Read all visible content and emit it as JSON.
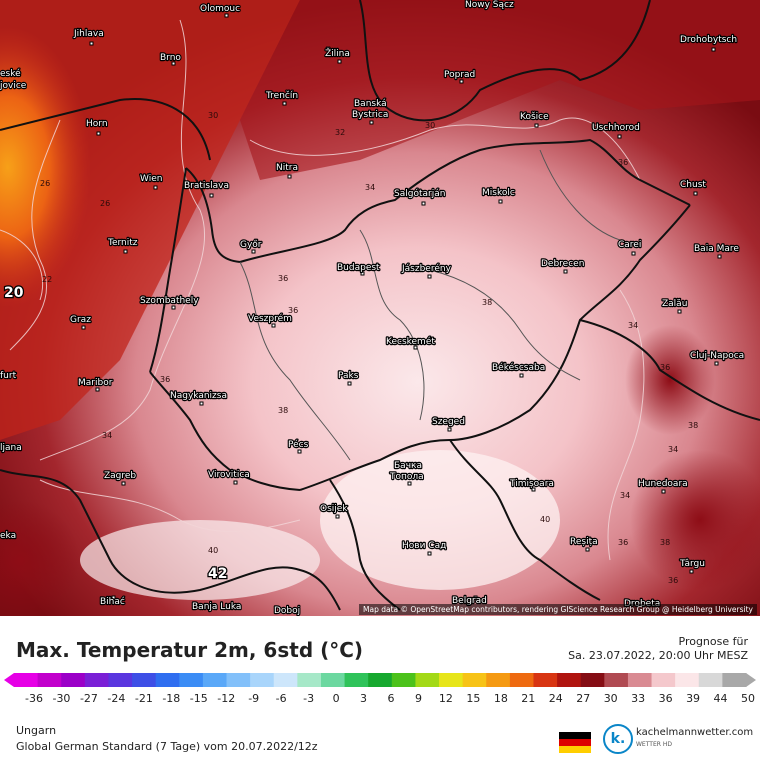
{
  "map": {
    "attribution": "Map data © OpenStreetMap contributors, rendering GIScience Research Group @ Heidelberg University",
    "cities": [
      {
        "id": "olomouc",
        "name": "Olomouc"
      },
      {
        "id": "nowysacz",
        "name": "Nowy Sącz"
      },
      {
        "id": "jihlava",
        "name": "Jihlava"
      },
      {
        "id": "drohobytsch",
        "name": "Drohobytsch"
      },
      {
        "id": "ceske",
        "name": "eské"
      },
      {
        "id": "jovice",
        "name": "jovice"
      },
      {
        "id": "brno",
        "name": "Brno"
      },
      {
        "id": "zilina",
        "name": "Žilina"
      },
      {
        "id": "poprad",
        "name": "Poprad"
      },
      {
        "id": "trencin",
        "name": "Trenčín"
      },
      {
        "id": "banska",
        "name": "Banská"
      },
      {
        "id": "bystrica",
        "name": "Bystrica"
      },
      {
        "id": "horn",
        "name": "Horn"
      },
      {
        "id": "kosice",
        "name": "Košice"
      },
      {
        "id": "uschhorod",
        "name": "Uschhorod"
      },
      {
        "id": "nitra",
        "name": "Nitra"
      },
      {
        "id": "wien",
        "name": "Wien"
      },
      {
        "id": "bratislava",
        "name": "Bratislava"
      },
      {
        "id": "salgotarjan",
        "name": "Salgótarján"
      },
      {
        "id": "miskolc",
        "name": "Miskolc"
      },
      {
        "id": "chust",
        "name": "Chust"
      },
      {
        "id": "ternitz",
        "name": "Ternitz"
      },
      {
        "id": "gyor",
        "name": "Győr"
      },
      {
        "id": "carei",
        "name": "Carei"
      },
      {
        "id": "baiamare",
        "name": "Baia Mare"
      },
      {
        "id": "budapest",
        "name": "Budapest"
      },
      {
        "id": "jaszbereny",
        "name": "Jászberény"
      },
      {
        "id": "debrecen",
        "name": "Debrecen"
      },
      {
        "id": "zalau",
        "name": "Zalău"
      },
      {
        "id": "szombathely",
        "name": "Szombathely"
      },
      {
        "id": "graz",
        "name": "Graz"
      },
      {
        "id": "veszprem",
        "name": "Veszprém"
      },
      {
        "id": "kecskemet",
        "name": "Kecskemét"
      },
      {
        "id": "clujnapoca",
        "name": "Cluj-Napoca"
      },
      {
        "id": "furt",
        "name": "furt"
      },
      {
        "id": "maribor",
        "name": "Maribor"
      },
      {
        "id": "paks",
        "name": "Paks"
      },
      {
        "id": "bekescsaba",
        "name": "Békéscsaba"
      },
      {
        "id": "nagykanizsa",
        "name": "Nagykanizsa"
      },
      {
        "id": "szeged",
        "name": "Szeged"
      },
      {
        "id": "ljubljana",
        "name": "ljana"
      },
      {
        "id": "pecs",
        "name": "Pécs"
      },
      {
        "id": "backa",
        "name": "Бачка"
      },
      {
        "id": "topola",
        "name": "Топола"
      },
      {
        "id": "zagreb",
        "name": "Zagreb"
      },
      {
        "id": "virovitica",
        "name": "Virovitica"
      },
      {
        "id": "timisoara",
        "name": "Timișoara"
      },
      {
        "id": "hunedoara",
        "name": "Hunedoara"
      },
      {
        "id": "osijek",
        "name": "Osijek"
      },
      {
        "id": "reka",
        "name": "eka"
      },
      {
        "id": "resita",
        "name": "Reșița"
      },
      {
        "id": "novisad",
        "name": "Нови Сад"
      },
      {
        "id": "targu",
        "name": "Târgu"
      },
      {
        "id": "bihac",
        "name": "Bihać"
      },
      {
        "id": "banjaluka",
        "name": "Banja Luka"
      },
      {
        "id": "doboj",
        "name": "Doboj"
      },
      {
        "id": "belgrad",
        "name": "Belgrad"
      },
      {
        "id": "drobeta",
        "name": "Drobeta"
      }
    ],
    "isotherms": [
      "26",
      "22",
      "26",
      "34",
      "36",
      "36",
      "36",
      "38",
      "38",
      "38",
      "34",
      "34",
      "36",
      "34",
      "36",
      "34",
      "36",
      "38",
      "40",
      "40",
      "36",
      "30",
      "30",
      "32"
    ],
    "values": [
      "20",
      "42"
    ]
  },
  "footer": {
    "title": "Max. Temperatur 2m, 6std (°C)",
    "forecast_label": "Prognose für",
    "forecast_date": "Sa. 23.07.2022, 20:00 Uhr MESZ",
    "region": "Ungarn",
    "model": "Global German Standard (7 Tage) vom  20.07.2022/12z",
    "logo_name": "kachelmannwetter.com",
    "logo_sub": "WETTER HD",
    "logo_letter": "k."
  },
  "scale": {
    "ticks": [
      "-36",
      "-30",
      "-27",
      "-24",
      "-21",
      "-18",
      "-15",
      "-12",
      "-9",
      "-6",
      "-3",
      "0",
      "3",
      "6",
      "9",
      "12",
      "15",
      "18",
      "21",
      "24",
      "27",
      "30",
      "33",
      "36",
      "39",
      "44",
      "50"
    ],
    "colors": [
      "#e600e6",
      "#c200cc",
      "#9b00c8",
      "#7a1fd6",
      "#5a36df",
      "#3e4fe6",
      "#2f6ef0",
      "#3b8cf5",
      "#5aa8f8",
      "#82c0fa",
      "#a9d5fb",
      "#cde6fb",
      "#a6e8c8",
      "#6cd8a0",
      "#2fc35a",
      "#17a82f",
      "#4cc21b",
      "#a3d916",
      "#e7e51a",
      "#f7c316",
      "#f59a12",
      "#ee6a10",
      "#d83512",
      "#b0140f",
      "#850d14",
      "#b04a52",
      "#d98a92",
      "#f4c8cc",
      "#fbe6e8",
      "#d8d8d8",
      "#a8a8a8"
    ]
  }
}
